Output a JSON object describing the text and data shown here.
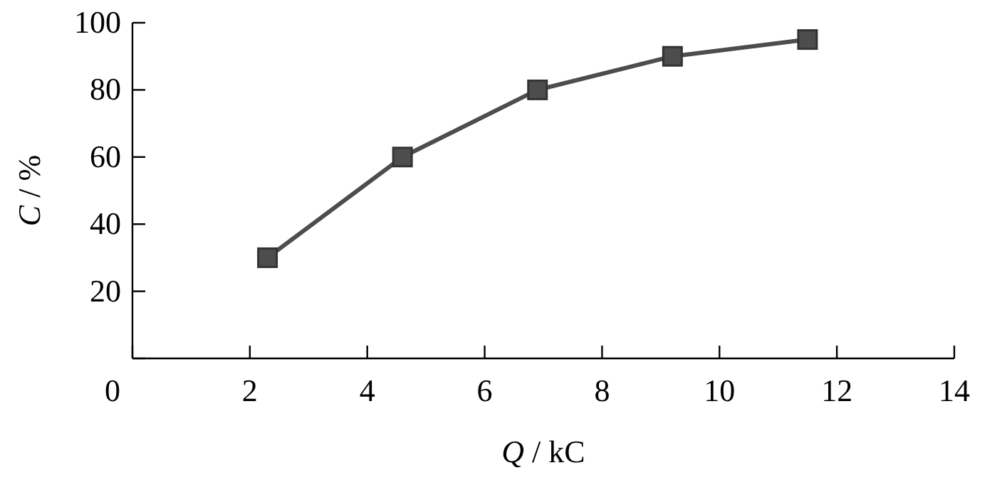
{
  "chart_data": {
    "type": "line",
    "xlabel": "Q / kC",
    "ylabel": "C / %",
    "x": [
      2.3,
      4.6,
      6.9,
      9.2,
      11.5
    ],
    "series": [
      {
        "color": "#4d4d4d",
        "values": [
          30,
          60,
          80,
          90,
          95
        ]
      }
    ],
    "xlim": [
      0,
      14
    ],
    "xticks": [
      0,
      2,
      4,
      6,
      8,
      10,
      12,
      14
    ],
    "ylim": [
      0,
      100
    ],
    "yticks": [
      {
        "value": 0,
        "label": null
      },
      20,
      40,
      60,
      80,
      100
    ],
    "marker": "square",
    "line_style": "solid"
  }
}
